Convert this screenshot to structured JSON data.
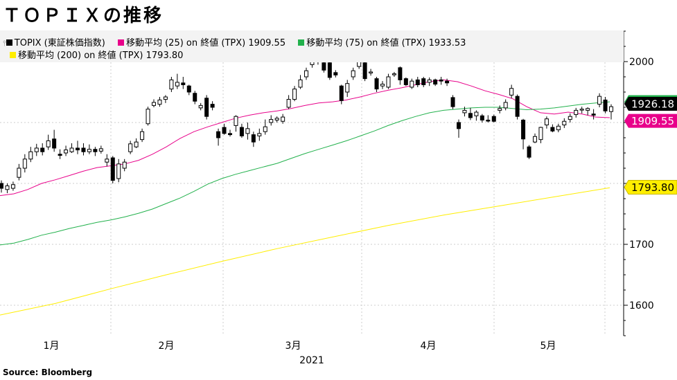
{
  "title": "ＴＯＰＩＸの推移",
  "source": "Source: Bloomberg",
  "legend": {
    "row1": [
      {
        "label": "TOPIX (東証株価指数)",
        "color": "#000000"
      },
      {
        "label": "移動平均 (25)  on 終値 (TPX) 1909.55",
        "color": "#e8008a"
      },
      {
        "label": "移動平均 (75)  on 終値 (TPX) 1933.53",
        "color": "#22b14c"
      }
    ],
    "row2": [
      {
        "label": "移動平均 (200)  on 終値 (TPX) 1793.80",
        "color": "#ffee00"
      }
    ]
  },
  "chart_data": {
    "type": "candlestick",
    "ylim": [
      1550,
      2050
    ],
    "y_ticks": [
      1600,
      1700,
      2000
    ],
    "x_month_labels": [
      "1月",
      "2月",
      "3月",
      "4月",
      "5月"
    ],
    "x_year_label": "2021",
    "candles": [
      [
        1800,
        1792,
        1805,
        1785
      ],
      [
        1790,
        1796,
        1800,
        1784
      ],
      [
        1792,
        1798,
        1803,
        1788
      ],
      [
        1810,
        1825,
        1832,
        1805
      ],
      [
        1825,
        1840,
        1848,
        1818
      ],
      [
        1840,
        1852,
        1860,
        1835
      ],
      [
        1852,
        1858,
        1865,
        1845
      ],
      [
        1858,
        1852,
        1866,
        1846
      ],
      [
        1860,
        1870,
        1880,
        1855
      ],
      [
        1873,
        1858,
        1888,
        1852
      ],
      [
        1848,
        1846,
        1856,
        1840
      ],
      [
        1850,
        1855,
        1862,
        1845
      ],
      [
        1852,
        1858,
        1866,
        1850
      ],
      [
        1858,
        1855,
        1870,
        1848
      ],
      [
        1858,
        1852,
        1866,
        1846
      ],
      [
        1852,
        1856,
        1864,
        1848
      ],
      [
        1856,
        1852,
        1860,
        1845
      ],
      [
        1853,
        1857,
        1862,
        1849
      ],
      [
        1835,
        1840,
        1848,
        1828
      ],
      [
        1842,
        1805,
        1845,
        1800
      ],
      [
        1808,
        1832,
        1840,
        1802
      ],
      [
        1825,
        1835,
        1840,
        1820
      ],
      [
        1852,
        1865,
        1870,
        1848
      ],
      [
        1860,
        1868,
        1874,
        1858
      ],
      [
        1872,
        1885,
        1890,
        1868
      ],
      [
        1898,
        1922,
        1926,
        1895
      ],
      [
        1928,
        1933,
        1938,
        1925
      ],
      [
        1930,
        1937,
        1942,
        1926
      ],
      [
        1938,
        1942,
        1945,
        1932
      ],
      [
        1955,
        1970,
        1975,
        1950
      ],
      [
        1960,
        1966,
        1980,
        1955
      ],
      [
        1965,
        1962,
        1975,
        1955
      ],
      [
        1960,
        1950,
        1962,
        1945
      ],
      [
        1948,
        1935,
        1952,
        1930
      ],
      [
        1924,
        1928,
        1932,
        1920
      ],
      [
        1940,
        1910,
        1945,
        1905
      ],
      [
        1930,
        1925,
        1935,
        1920
      ],
      [
        1885,
        1875,
        1890,
        1862
      ],
      [
        1892,
        1882,
        1898,
        1880
      ],
      [
        1882,
        1880,
        1888,
        1877
      ],
      [
        1895,
        1910,
        1912,
        1885
      ],
      [
        1892,
        1878,
        1898,
        1875
      ],
      [
        1882,
        1890,
        1900,
        1872
      ],
      [
        1880,
        1868,
        1885,
        1860
      ],
      [
        1878,
        1882,
        1890,
        1870
      ],
      [
        1885,
        1893,
        1905,
        1880
      ],
      [
        1900,
        1905,
        1912,
        1895
      ],
      [
        1904,
        1907,
        1910,
        1900
      ],
      [
        1902,
        1909,
        1914,
        1898
      ],
      [
        1925,
        1938,
        1945,
        1922
      ],
      [
        1938,
        1955,
        1960,
        1935
      ],
      [
        1958,
        1970,
        1978,
        1955
      ],
      [
        1975,
        1985,
        1990,
        1970
      ],
      [
        1995,
        2008,
        2012,
        1990
      ],
      [
        2000,
        2012,
        2015,
        1995
      ],
      [
        1998,
        1986,
        2000,
        1982
      ],
      [
        1998,
        1974,
        2000,
        1970
      ],
      [
        1982,
        1978,
        1986,
        1974
      ],
      [
        1960,
        1936,
        1962,
        1930
      ],
      [
        1950,
        1964,
        1970,
        1942
      ],
      [
        1975,
        1985,
        1990,
        1970
      ],
      [
        1992,
        2004,
        2007,
        1988
      ],
      [
        1998,
        1972,
        2000,
        1968
      ],
      [
        1982,
        1983,
        1988,
        1977
      ],
      [
        1972,
        1955,
        1975,
        1950
      ],
      [
        1960,
        1963,
        1968,
        1955
      ],
      [
        1958,
        1975,
        1980,
        1955
      ],
      [
        1980,
        1980,
        1983,
        1975
      ],
      [
        1990,
        1970,
        1992,
        1962
      ],
      [
        1972,
        1962,
        1974,
        1960
      ],
      [
        1958,
        1968,
        1972,
        1955
      ],
      [
        1970,
        1962,
        1975,
        1958
      ],
      [
        1972,
        1962,
        1975,
        1958
      ],
      [
        1966,
        1970,
        1974,
        1960
      ],
      [
        1970,
        1963,
        1972,
        1960
      ],
      [
        1970,
        1968,
        1975,
        1962
      ],
      [
        1968,
        1965,
        1972,
        1960
      ],
      [
        1941,
        1926,
        1945,
        1922
      ],
      [
        1900,
        1890,
        1905,
        1875
      ],
      [
        1916,
        1920,
        1926,
        1910
      ],
      [
        1915,
        1908,
        1924,
        1904
      ],
      [
        1911,
        1917,
        1920,
        1903
      ],
      [
        1911,
        1904,
        1914,
        1900
      ],
      [
        1904,
        1903,
        1912,
        1900
      ],
      [
        1910,
        1902,
        1913,
        1900
      ],
      [
        1920,
        1923,
        1928,
        1915
      ],
      [
        1924,
        1933,
        1938,
        1920
      ],
      [
        1945,
        1956,
        1962,
        1940
      ],
      [
        1943,
        1910,
        1946,
        1905
      ],
      [
        1904,
        1873,
        1906,
        1856
      ],
      [
        1860,
        1843,
        1863,
        1840
      ],
      [
        1868,
        1877,
        1882,
        1866
      ],
      [
        1872,
        1892,
        1893,
        1866
      ],
      [
        1896,
        1906,
        1910,
        1890
      ],
      [
        1892,
        1886,
        1897,
        1884
      ],
      [
        1888,
        1894,
        1898,
        1884
      ],
      [
        1896,
        1902,
        1907,
        1891
      ],
      [
        1905,
        1910,
        1915,
        1900
      ],
      [
        1913,
        1920,
        1924,
        1908
      ],
      [
        1921,
        1922,
        1926,
        1915
      ],
      [
        1920,
        1923,
        1925,
        1912
      ],
      [
        1914,
        1912,
        1922,
        1905
      ],
      [
        1930,
        1943,
        1948,
        1925
      ],
      [
        1937,
        1919,
        1942,
        1915
      ],
      [
        1918,
        1926,
        1930,
        1905
      ]
    ],
    "series": [
      {
        "name": "移動平均 (25)",
        "color": "#e8008a",
        "last": 1909.55,
        "values": [
          [
            0,
            1780
          ],
          [
            20,
            1783
          ],
          [
            40,
            1790
          ],
          [
            60,
            1800
          ],
          [
            80,
            1806
          ],
          [
            100,
            1813
          ],
          [
            120,
            1820
          ],
          [
            140,
            1826
          ],
          [
            160,
            1829
          ],
          [
            180,
            1832
          ],
          [
            200,
            1838
          ],
          [
            220,
            1848
          ],
          [
            240,
            1860
          ],
          [
            260,
            1874
          ],
          [
            280,
            1885
          ],
          [
            300,
            1893
          ],
          [
            320,
            1900
          ],
          [
            340,
            1907
          ],
          [
            360,
            1912
          ],
          [
            380,
            1916
          ],
          [
            400,
            1919
          ],
          [
            420,
            1923
          ],
          [
            440,
            1928
          ],
          [
            460,
            1932
          ],
          [
            480,
            1934
          ],
          [
            500,
            1937
          ],
          [
            520,
            1942
          ],
          [
            540,
            1948
          ],
          [
            560,
            1953
          ],
          [
            580,
            1957
          ],
          [
            600,
            1962
          ],
          [
            620,
            1967
          ],
          [
            640,
            1970
          ],
          [
            660,
            1967
          ],
          [
            680,
            1960
          ],
          [
            700,
            1952
          ],
          [
            720,
            1946
          ],
          [
            740,
            1939
          ],
          [
            760,
            1926
          ],
          [
            780,
            1916
          ],
          [
            800,
            1914
          ],
          [
            820,
            1917
          ],
          [
            840,
            1914
          ],
          [
            860,
            1909
          ],
          [
            880,
            1908
          ]
        ]
      },
      {
        "name": "移動平均 (75)",
        "color": "#22b14c",
        "last": 1933.53,
        "values": [
          [
            0,
            1699
          ],
          [
            20,
            1702
          ],
          [
            40,
            1708
          ],
          [
            60,
            1715
          ],
          [
            80,
            1720
          ],
          [
            100,
            1726
          ],
          [
            120,
            1731
          ],
          [
            140,
            1736
          ],
          [
            160,
            1740
          ],
          [
            180,
            1745
          ],
          [
            200,
            1751
          ],
          [
            220,
            1758
          ],
          [
            240,
            1767
          ],
          [
            260,
            1776
          ],
          [
            280,
            1787
          ],
          [
            300,
            1799
          ],
          [
            320,
            1808
          ],
          [
            340,
            1815
          ],
          [
            360,
            1821
          ],
          [
            380,
            1827
          ],
          [
            400,
            1833
          ],
          [
            420,
            1841
          ],
          [
            440,
            1849
          ],
          [
            460,
            1856
          ],
          [
            480,
            1863
          ],
          [
            500,
            1870
          ],
          [
            520,
            1878
          ],
          [
            540,
            1886
          ],
          [
            560,
            1895
          ],
          [
            580,
            1903
          ],
          [
            600,
            1910
          ],
          [
            620,
            1916
          ],
          [
            640,
            1920
          ],
          [
            660,
            1922
          ],
          [
            680,
            1924
          ],
          [
            700,
            1925
          ],
          [
            720,
            1925
          ],
          [
            740,
            1923
          ],
          [
            760,
            1921
          ],
          [
            780,
            1922
          ],
          [
            800,
            1924
          ],
          [
            820,
            1927
          ],
          [
            840,
            1930
          ],
          [
            860,
            1932
          ],
          [
            880,
            1934
          ]
        ]
      },
      {
        "name": "移動平均 (200)",
        "color": "#ffee00",
        "last": 1793.8,
        "values": [
          [
            0,
            1584
          ],
          [
            80,
            1603
          ],
          [
            160,
            1627
          ],
          [
            240,
            1650
          ],
          [
            320,
            1672
          ],
          [
            400,
            1693
          ],
          [
            480,
            1712
          ],
          [
            560,
            1731
          ],
          [
            640,
            1748
          ],
          [
            720,
            1763
          ],
          [
            800,
            1778
          ],
          [
            880,
            1793
          ]
        ]
      }
    ],
    "last_close": 1926.18,
    "price_tags": [
      {
        "value_text": "1926.18",
        "value": 1926.18,
        "bg": "#000000",
        "fg": "#ffffff"
      },
      {
        "value_text": "1909.55",
        "value": 1909.55,
        "bg": "#e8008a",
        "fg": "#ffffff"
      },
      {
        "value_text": "1793.80",
        "value": 1793.8,
        "bg": "#ffee00",
        "fg": "#000000"
      }
    ]
  }
}
